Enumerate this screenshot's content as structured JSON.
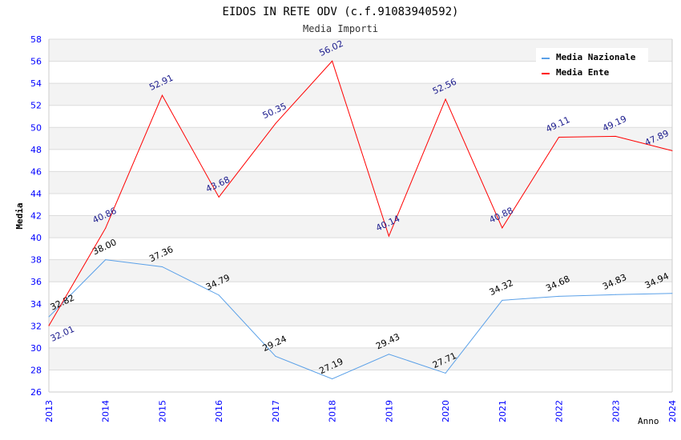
{
  "chart_data": {
    "type": "line",
    "title": "EIDOS IN RETE ODV (c.f.91083940592)",
    "subtitle": "Media Importi",
    "xlabel": "Anno",
    "ylabel": "Media",
    "ylim": [
      26,
      58
    ],
    "yticks": [
      26,
      28,
      30,
      32,
      34,
      36,
      38,
      40,
      42,
      44,
      46,
      48,
      50,
      52,
      54,
      56,
      58
    ],
    "x": [
      "2013",
      "2014",
      "2015",
      "2016",
      "2017",
      "2018",
      "2019",
      "2020",
      "2021",
      "2022",
      "2023",
      "2024"
    ],
    "legend_position": "top-right",
    "series": [
      {
        "name": "Media Nazionale",
        "color": "#5aa0e8",
        "label_color": "#000000",
        "values": [
          32.82,
          38.0,
          37.36,
          34.79,
          29.24,
          27.19,
          29.43,
          27.71,
          34.32,
          34.68,
          34.83,
          34.94
        ],
        "labels": [
          "32.82",
          "38.00",
          "37.36",
          "34.79",
          "29.24",
          "27.19",
          "29.43",
          "27.71",
          "34.32",
          "34.68",
          "34.83",
          "34.94"
        ]
      },
      {
        "name": "Media Ente",
        "color": "#ff0000",
        "label_color": "#1a1a8c",
        "values": [
          32.01,
          40.86,
          52.91,
          43.68,
          50.35,
          56.02,
          40.14,
          52.56,
          40.88,
          49.11,
          49.19,
          47.89
        ],
        "labels": [
          "32.01",
          "40.86",
          "52.91",
          "43.68",
          "50.35",
          "56.02",
          "40.14",
          "52.56",
          "40.88",
          "49.11",
          "49.19",
          "47.89"
        ]
      }
    ]
  }
}
